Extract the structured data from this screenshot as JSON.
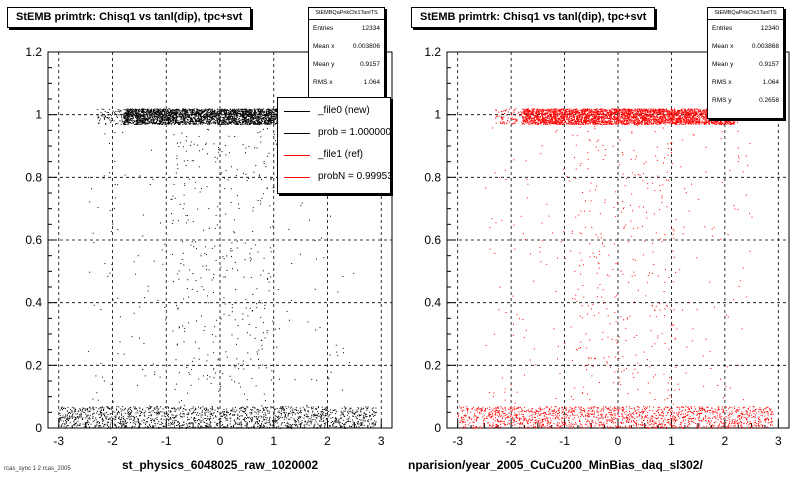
{
  "chart_data": [
    {
      "type": "scatter",
      "title": "StEMB primtrk: Chisq1 vs tanl(dip), tpc+svt",
      "xlabel": "st_physics_6048025_raw_1020002",
      "ylabel": "",
      "xlim": [
        -3.2,
        3.2
      ],
      "ylim": [
        0,
        1.2
      ],
      "x_ticks": [
        -3,
        -2,
        -1,
        0,
        1,
        2,
        3
      ],
      "x_tick_labels": [
        "-3",
        "-2",
        "-1",
        "0",
        "1",
        "2",
        "3"
      ],
      "y_ticks": [
        0,
        0.2,
        0.4,
        0.6,
        0.8,
        1,
        1.2
      ],
      "y_tick_labels": [
        "0",
        "0.2",
        "0.4",
        "0.6",
        "0.8",
        "1",
        "1.2"
      ],
      "grid": true,
      "color": "#000000",
      "series": [
        {
          "name": "_file0 (new)",
          "distribution": [
            {
              "label": "band_y1",
              "x_range": [
                -2.3,
                2.3
              ],
              "y_range": [
                0.97,
                1.02
              ]
            },
            {
              "label": "band_y0",
              "x_range": [
                -3.0,
                2.9
              ],
              "y_range": [
                0.0,
                0.07
              ]
            },
            {
              "label": "sparse",
              "x_range": [
                -2.5,
                2.5
              ],
              "y_range": [
                0.07,
                0.97
              ]
            }
          ]
        }
      ],
      "stats": {
        "header": "StEMBQaPrikChi1TanlTS",
        "rows": [
          {
            "label": "Entries",
            "value": "12334"
          },
          {
            "label": "Mean x",
            "value": "0.003806"
          },
          {
            "label": "Mean y",
            "value": "0.9157"
          },
          {
            "label": "RMS x",
            "value": "1.064"
          },
          {
            "label": "RMS y",
            "value": "0.2658"
          }
        ]
      },
      "legend": {
        "entries": [
          {
            "label": "_file0 (new)",
            "color": "#000000"
          },
          {
            "label": "prob = 1.000000",
            "color": "#000000"
          },
          {
            "label": "_file1 (ref)",
            "color": "#ff0000"
          },
          {
            "label": "probN = 0.999539",
            "color": "#ff0000"
          }
        ]
      }
    },
    {
      "type": "scatter",
      "title": "StEMB primtrk: Chisq1 vs tanl(dip), tpc+svt",
      "xlabel": "nparision/year_2005_CuCu200_MinBias_daq_sl302/",
      "ylabel": "",
      "xlim": [
        -3.2,
        3.2
      ],
      "ylim": [
        0,
        1.2
      ],
      "x_ticks": [
        -3,
        -2,
        -1,
        0,
        1,
        2,
        3
      ],
      "x_tick_labels": [
        "-3",
        "-2",
        "-1",
        "0",
        "1",
        "2",
        "3"
      ],
      "y_ticks": [
        0,
        0.2,
        0.4,
        0.6,
        0.8,
        1,
        1.2
      ],
      "y_tick_labels": [
        "0",
        "0.2",
        "0.4",
        "0.6",
        "0.8",
        "1",
        "1.2"
      ],
      "grid": true,
      "color": "#ff0000",
      "series": [
        {
          "name": "_file1 (ref)",
          "distribution": [
            {
              "label": "band_y1",
              "x_range": [
                -2.3,
                2.3
              ],
              "y_range": [
                0.97,
                1.02
              ]
            },
            {
              "label": "band_y0",
              "x_range": [
                -3.0,
                2.9
              ],
              "y_range": [
                0.0,
                0.07
              ]
            },
            {
              "label": "sparse",
              "x_range": [
                -2.5,
                2.5
              ],
              "y_range": [
                0.07,
                0.97
              ]
            }
          ]
        }
      ],
      "stats": {
        "header": "StEMBQaPrikChi1TanlTS",
        "rows": [
          {
            "label": "Entries",
            "value": "12340"
          },
          {
            "label": "Mean x",
            "value": "0.003868"
          },
          {
            "label": "Mean y",
            "value": "0.9157"
          },
          {
            "label": "RMS x",
            "value": "1.064"
          },
          {
            "label": "RMS y",
            "value": "0.2658"
          }
        ]
      }
    }
  ],
  "footer": "rcas_sync 1 2 rcas_2005"
}
